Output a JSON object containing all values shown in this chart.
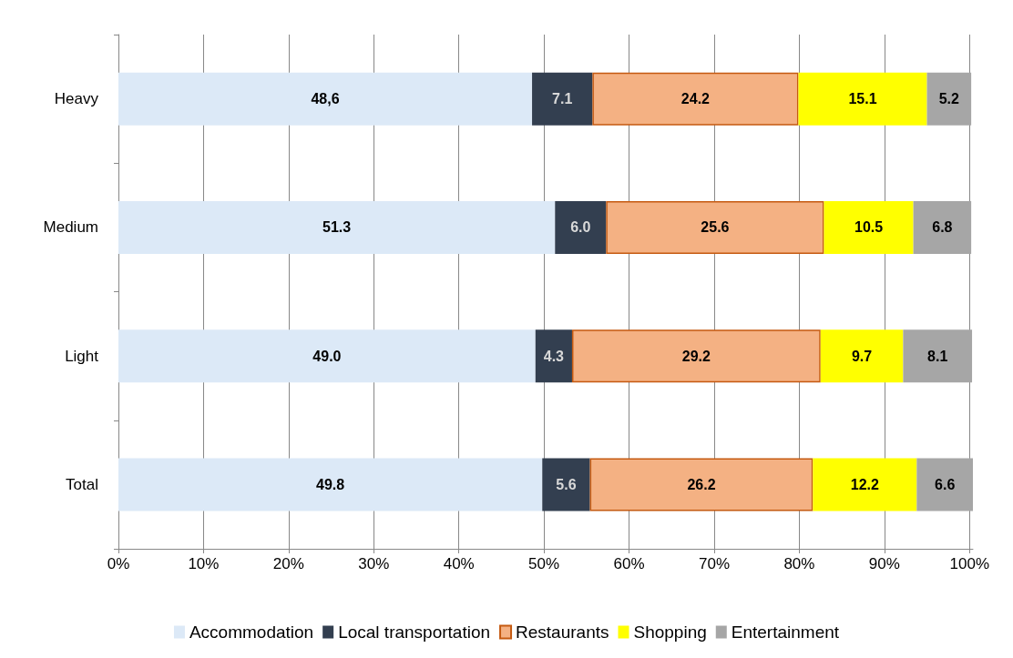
{
  "chart_data": {
    "type": "bar",
    "orientation": "horizontal",
    "stacked": true,
    "categories": [
      "Heavy",
      "Medium",
      "Light",
      "Total"
    ],
    "series": [
      {
        "name": "Accommodation",
        "color": "#dce9f7",
        "values": [
          48.6,
          51.3,
          49.0,
          49.8
        ],
        "value_labels": [
          "48,6",
          "51.3",
          "49.0",
          "49.8"
        ]
      },
      {
        "name": "Local transportation",
        "color": "#333f50",
        "values": [
          7.1,
          6.0,
          4.3,
          5.6
        ],
        "value_labels": [
          "7.1",
          "6.0",
          "4.3",
          "5.6"
        ]
      },
      {
        "name": "Restaurants",
        "color": "#f4b183",
        "values": [
          24.2,
          25.6,
          29.2,
          26.2
        ],
        "value_labels": [
          "24.2",
          "25.6",
          "29.2",
          "26.2"
        ]
      },
      {
        "name": "Shopping",
        "color": "#ffff00",
        "values": [
          15.1,
          10.5,
          9.7,
          12.2
        ],
        "value_labels": [
          "15.1",
          "10.5",
          "9.7",
          "12.2"
        ]
      },
      {
        "name": "Entertainment",
        "color": "#a6a6a6",
        "values": [
          5.2,
          6.8,
          8.1,
          6.6
        ],
        "value_labels": [
          "5.2",
          "6.8",
          "8.1",
          "6.6"
        ]
      }
    ],
    "xlim": [
      0,
      100.4
    ],
    "xticks": [
      {
        "value": 0,
        "label": "0%"
      },
      {
        "value": 10,
        "label": "10%"
      },
      {
        "value": 20,
        "label": "20%"
      },
      {
        "value": 30,
        "label": "30%"
      },
      {
        "value": 40,
        "label": "40%"
      },
      {
        "value": 50,
        "label": "50%"
      },
      {
        "value": 60,
        "label": "60%"
      },
      {
        "value": 70,
        "label": "70%"
      },
      {
        "value": 80,
        "label": "80%"
      },
      {
        "value": 90,
        "label": "90%"
      },
      {
        "value": 100,
        "label": "100%"
      }
    ],
    "grid": "x",
    "legend": "bottom"
  }
}
